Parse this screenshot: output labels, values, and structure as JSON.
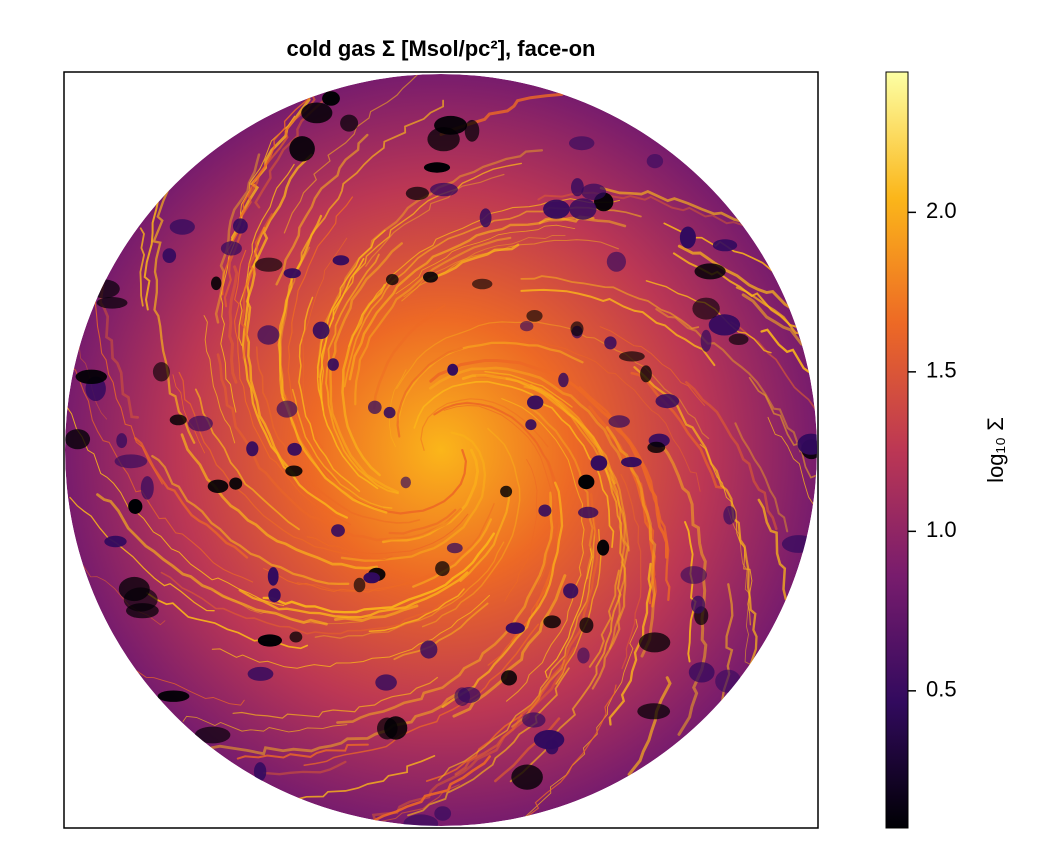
{
  "chart_data": {
    "type": "heatmap",
    "title": "cold gas Σ [Msol/pc²], face-on",
    "colorbar_label": "log₁₀ Σ",
    "zlim": [
      0.07,
      2.44
    ],
    "zticks": [
      0.5,
      {
        "value": 1.0,
        "label": "1.0"
      },
      1.5,
      {
        "value": 2.0,
        "label": "2.0"
      }
    ],
    "colormap": [
      "#000004",
      "#320a5e",
      "#781c6d",
      "#bc3754",
      "#ed6925",
      "#fbb61a",
      "#fcffa4"
    ]
  }
}
